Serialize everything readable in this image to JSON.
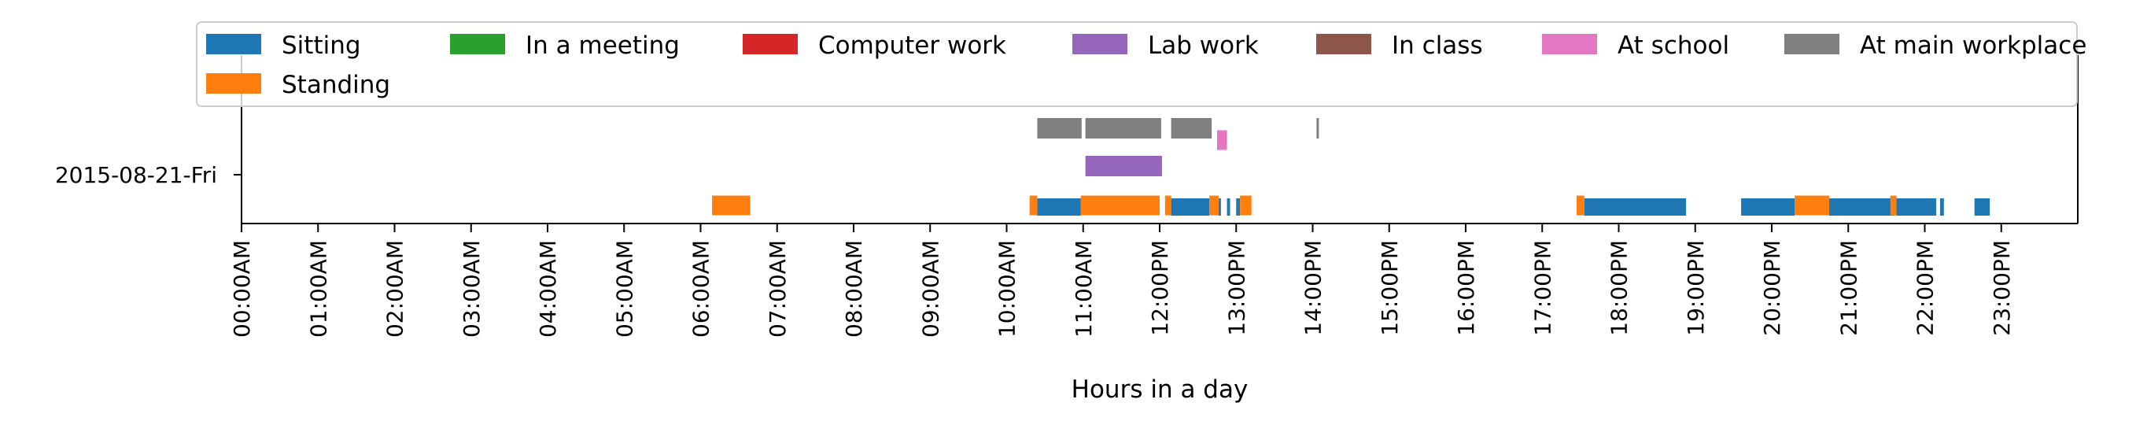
{
  "chart_data": {
    "type": "timeline",
    "xlabel": "Hours in a day",
    "xlim": [
      0,
      24
    ],
    "x_ticks": [
      {
        "hour": 0,
        "label": "00:00AM"
      },
      {
        "hour": 1,
        "label": "01:00AM"
      },
      {
        "hour": 2,
        "label": "02:00AM"
      },
      {
        "hour": 3,
        "label": "03:00AM"
      },
      {
        "hour": 4,
        "label": "04:00AM"
      },
      {
        "hour": 5,
        "label": "05:00AM"
      },
      {
        "hour": 6,
        "label": "06:00AM"
      },
      {
        "hour": 7,
        "label": "07:00AM"
      },
      {
        "hour": 8,
        "label": "08:00AM"
      },
      {
        "hour": 9,
        "label": "09:00AM"
      },
      {
        "hour": 10,
        "label": "10:00AM"
      },
      {
        "hour": 11,
        "label": "11:00AM"
      },
      {
        "hour": 12,
        "label": "12:00PM"
      },
      {
        "hour": 13,
        "label": "13:00PM"
      },
      {
        "hour": 14,
        "label": "14:00PM"
      },
      {
        "hour": 15,
        "label": "15:00PM"
      },
      {
        "hour": 16,
        "label": "16:00PM"
      },
      {
        "hour": 17,
        "label": "17:00PM"
      },
      {
        "hour": 18,
        "label": "18:00PM"
      },
      {
        "hour": 19,
        "label": "19:00PM"
      },
      {
        "hour": 20,
        "label": "20:00PM"
      },
      {
        "hour": 21,
        "label": "21:00PM"
      },
      {
        "hour": 22,
        "label": "22:00PM"
      },
      {
        "hour": 23,
        "label": "23:00PM"
      }
    ],
    "y_categories": [
      "2015-08-21-Fri"
    ],
    "legend_position": "top",
    "series": [
      {
        "name": "Sitting",
        "color": "#1f77b4",
        "intervals": [
          [
            10.4,
            10.97
          ],
          [
            12.15,
            12.65
          ],
          [
            12.77,
            12.8
          ],
          [
            12.88,
            12.92
          ],
          [
            13.0,
            13.05
          ],
          [
            17.55,
            18.88
          ],
          [
            19.6,
            20.3
          ],
          [
            20.75,
            21.6
          ],
          [
            21.63,
            22.15
          ],
          [
            22.2,
            22.25
          ],
          [
            22.65,
            22.85
          ]
        ]
      },
      {
        "name": "Standing",
        "color": "#ff7f0e",
        "intervals": [
          [
            6.15,
            6.65
          ],
          [
            10.3,
            10.4
          ],
          [
            10.97,
            12.0
          ],
          [
            12.07,
            12.15
          ],
          [
            12.65,
            12.77
          ],
          [
            13.05,
            13.2
          ],
          [
            17.45,
            17.55
          ],
          [
            20.3,
            20.75
          ],
          [
            21.55,
            21.63
          ]
        ]
      },
      {
        "name": "In a meeting",
        "color": "#2ca02c",
        "intervals": []
      },
      {
        "name": "Computer work",
        "color": "#d62728",
        "intervals": []
      },
      {
        "name": "Lab work",
        "color": "#9467bd",
        "intervals": [
          [
            11.03,
            12.03
          ]
        ]
      },
      {
        "name": "In class",
        "color": "#8c564b",
        "intervals": []
      },
      {
        "name": "At school",
        "color": "#e377c2",
        "intervals": [
          [
            12.75,
            12.88
          ]
        ]
      },
      {
        "name": "At main workplace",
        "color": "#7f7f7f",
        "intervals": [
          [
            10.4,
            10.98
          ],
          [
            11.03,
            12.02
          ],
          [
            12.15,
            12.68
          ],
          [
            14.05,
            14.08
          ]
        ]
      }
    ],
    "legend_order": [
      "Sitting",
      "In a meeting",
      "Computer work",
      "Lab work",
      "In class",
      "At school",
      "At main workplace",
      "Standing"
    ]
  }
}
